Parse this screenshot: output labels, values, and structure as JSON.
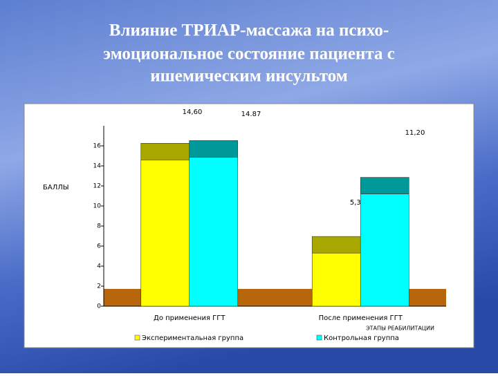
{
  "title_lines": [
    "Влияние ТРИАР-массажа на психо-",
    "эмоциональное состояние пациента с",
    "ишемическим инсультом"
  ],
  "chart_data": {
    "type": "bar",
    "categories": [
      "До применения ГГТ",
      "После применения ГГТ"
    ],
    "series": [
      {
        "name": "Экспериментальная группа",
        "color": "#ffff00",
        "values": [
          14.6,
          5.3
        ],
        "value_labels": [
          "14,60",
          "5,30"
        ]
      },
      {
        "name": "Контрольная группа",
        "color": "#00ffff",
        "values": [
          14.87,
          11.2
        ],
        "value_labels": [
          "14.87",
          "11,20"
        ]
      }
    ],
    "y_label": "БАЛЛЫ",
    "x_label": "ЭТАПЫ РЕАБИЛИТАЦИИ",
    "ylim": [
      0,
      18
    ],
    "yticks": [
      0,
      2,
      4,
      6,
      8,
      10,
      12,
      14,
      16
    ]
  }
}
